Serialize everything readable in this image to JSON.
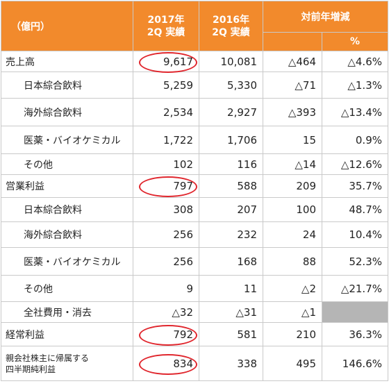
{
  "header": {
    "unit": "（億円）",
    "col2017": "2017年\n2Q 実績",
    "col2016": "2016年\n2Q 実績",
    "yoy": "対前年増減",
    "pct": "%"
  },
  "rows": [
    {
      "label": "売上高",
      "v2017": "9,617",
      "v2016": "10,081",
      "diff": "△464",
      "pct": "△4.6%"
    },
    {
      "label": "日本綜合飲料",
      "v2017": "5,259",
      "v2016": "5,330",
      "diff": "△71",
      "pct": "△1.3%"
    },
    {
      "label": "海外綜合飲料",
      "v2017": "2,534",
      "v2016": "2,927",
      "diff": "△393",
      "pct": "△13.4%"
    },
    {
      "label": "医薬・バイオケミカル",
      "v2017": "1,722",
      "v2016": "1,706",
      "diff": "15",
      "pct": "0.9%"
    },
    {
      "label": "その他",
      "v2017": "102",
      "v2016": "116",
      "diff": "△14",
      "pct": "△12.6%"
    },
    {
      "label": "営業利益",
      "v2017": "797",
      "v2016": "588",
      "diff": "209",
      "pct": "35.7%"
    },
    {
      "label": "日本綜合飲料",
      "v2017": "308",
      "v2016": "207",
      "diff": "100",
      "pct": "48.7%"
    },
    {
      "label": "海外綜合飲料",
      "v2017": "256",
      "v2016": "232",
      "diff": "24",
      "pct": "10.4%"
    },
    {
      "label": "医薬・バイオケミカル",
      "v2017": "256",
      "v2016": "168",
      "diff": "88",
      "pct": "52.3%"
    },
    {
      "label": "その他",
      "v2017": "9",
      "v2016": "11",
      "diff": "△2",
      "pct": "△21.7%"
    },
    {
      "label": "全社費用・消去",
      "v2017": "△32",
      "v2016": "△31",
      "diff": "△1",
      "pct": ""
    },
    {
      "label": "経常利益",
      "v2017": "792",
      "v2016": "581",
      "diff": "210",
      "pct": "36.3%"
    },
    {
      "label": "親会社株主に帰属する\n四半期純利益",
      "v2017": "834",
      "v2016": "338",
      "diff": "495",
      "pct": "146.6%"
    }
  ],
  "colors": {
    "header_bg": "#f28a2c",
    "total_border": "#e88a30",
    "highlight_circle": "#e0262d",
    "na_cell": "#b5b5b5"
  }
}
